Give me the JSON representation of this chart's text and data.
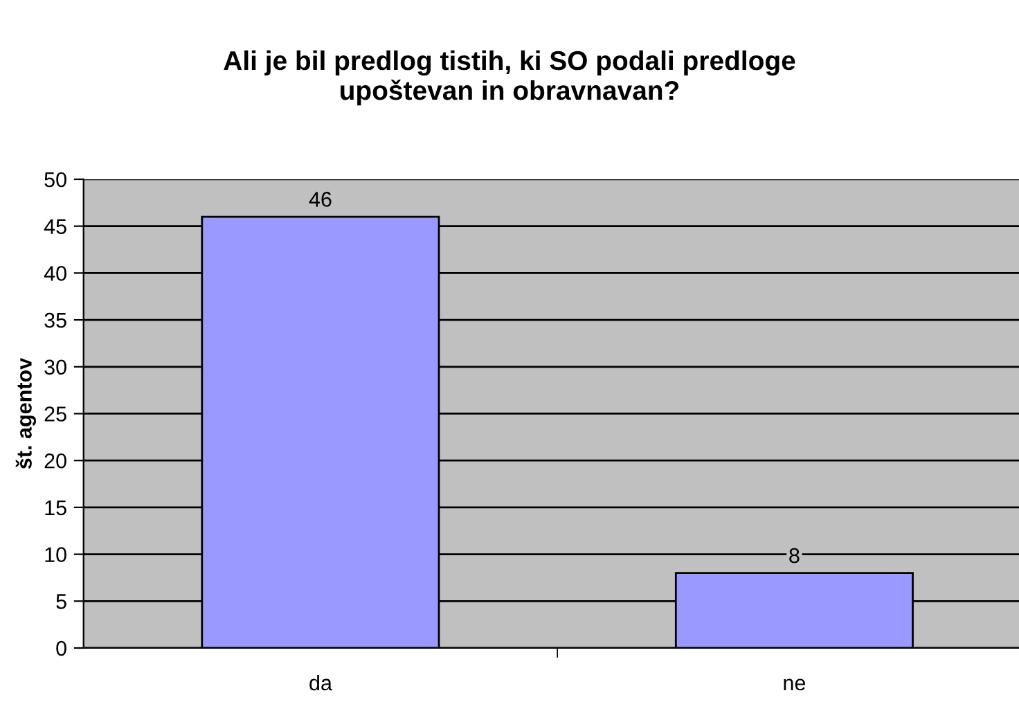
{
  "chart_data": {
    "type": "bar",
    "title": "Ali je bil predlog tistih, ki SO podali predloge\nupoštevan in obravnavan?",
    "ylabel": "št. agentov",
    "categories": [
      "da",
      "ne"
    ],
    "values": [
      46,
      8
    ],
    "color": "#9999ff",
    "ylim": [
      0,
      50
    ],
    "yticks": [
      0,
      5,
      10,
      15,
      20,
      25,
      30,
      35,
      40,
      45,
      50
    ],
    "grid": "y",
    "data_labels": true
  }
}
